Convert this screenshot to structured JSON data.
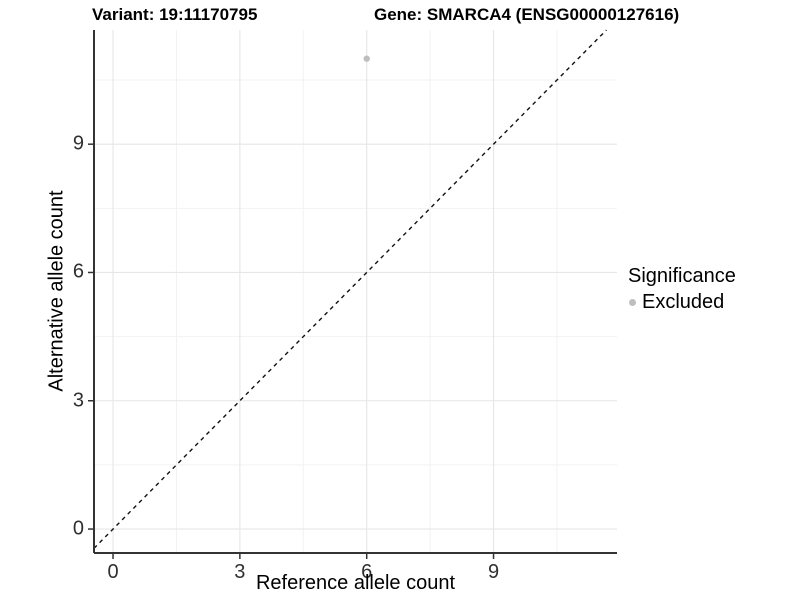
{
  "header": {
    "variant_title": "Variant: 19:11170795",
    "gene_title": "Gene: SMARCA4 (ENSG00000127616)"
  },
  "chart_data": {
    "type": "scatter",
    "title": "Variant: 19:11170795 / Gene: SMARCA4 (ENSG00000127616)",
    "xlabel": "Reference allele count",
    "ylabel": "Alternative allele count",
    "xlim": [
      -0.45,
      11.92
    ],
    "ylim": [
      -0.56,
      11.67
    ],
    "xticks": [
      0,
      3,
      6,
      9
    ],
    "yticks": [
      0,
      3,
      6,
      9
    ],
    "minor_gridlines": [
      1.5,
      4.5,
      7.5,
      10.5
    ],
    "grid": "major and minor, light gray on white",
    "series": [
      {
        "name": "Excluded",
        "color": "#bebebe",
        "points": [
          [
            6,
            11
          ]
        ]
      }
    ],
    "identity_line": {
      "equation": "y = x",
      "style": "dashed",
      "color": "#111111"
    },
    "legend": {
      "title": "Significance",
      "position": "right",
      "entries": [
        {
          "label": "Excluded",
          "color": "#bebebe"
        }
      ]
    }
  },
  "colors": {
    "background": "#ffffff",
    "axis": "#333333",
    "grid_major": "#e6e6e6",
    "grid_minor": "#f2f2f2",
    "tick_text": "#303030",
    "point": "#bebebe"
  }
}
